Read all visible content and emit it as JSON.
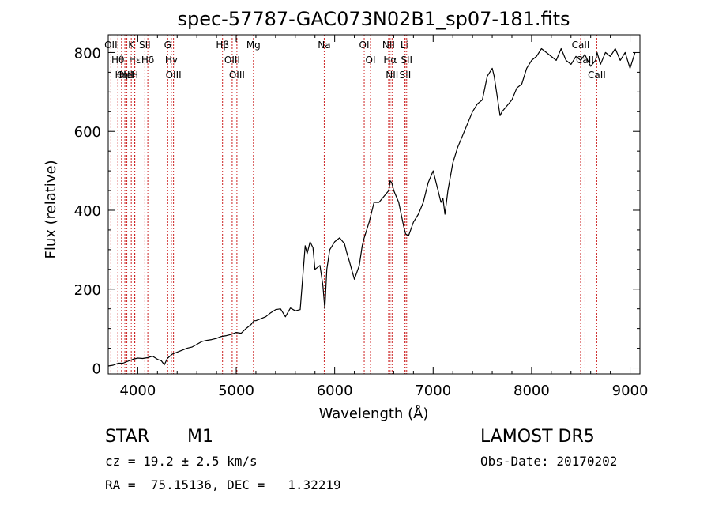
{
  "chart_data": {
    "type": "line",
    "title": "spec-57787-GAC073N02B1_sp07-181.fits",
    "xlabel": "Wavelength (Å)",
    "ylabel": "Flux (relative)",
    "xlim": [
      3700,
      9100
    ],
    "ylim": [
      -15,
      845
    ],
    "x_ticks": [
      4000,
      5000,
      6000,
      7000,
      8000,
      9000
    ],
    "y_ticks": [
      0,
      200,
      400,
      600,
      800
    ],
    "grid": false,
    "line_color": "#000000",
    "marker_color": "#cc2222",
    "series": [
      {
        "x": [
          3700,
          3750,
          3800,
          3850,
          3900,
          3950,
          4000,
          4050,
          4100,
          4150,
          4200,
          4240,
          4270,
          4300,
          4350,
          4400,
          4450,
          4500,
          4550,
          4600,
          4650,
          4700,
          4750,
          4800,
          4850,
          4900,
          4950,
          5000,
          5050,
          5100,
          5150,
          5180,
          5200,
          5250,
          5300,
          5350,
          5400,
          5450,
          5500,
          5550,
          5600,
          5650,
          5700,
          5720,
          5750,
          5780,
          5800,
          5850,
          5880,
          5900,
          5920,
          5950,
          6000,
          6050,
          6100,
          6120,
          6150,
          6200,
          6250,
          6280,
          6300,
          6350,
          6400,
          6450,
          6500,
          6550,
          6563,
          6580,
          6600,
          6650,
          6700,
          6720,
          6750,
          6800,
          6850,
          6900,
          6950,
          7000,
          7050,
          7080,
          7100,
          7120,
          7150,
          7200,
          7250,
          7300,
          7350,
          7400,
          7450,
          7500,
          7550,
          7600,
          7620,
          7650,
          7680,
          7700,
          7750,
          7800,
          7850,
          7900,
          7950,
          8000,
          8050,
          8100,
          8150,
          8200,
          8250,
          8300,
          8350,
          8400,
          8450,
          8500,
          8540,
          8600,
          8650,
          8665,
          8700,
          8750,
          8800,
          8850,
          8900,
          8950,
          9000,
          9050
        ],
        "values": [
          5,
          7,
          12,
          12,
          17,
          22,
          25,
          24,
          26,
          30,
          22,
          18,
          8,
          24,
          35,
          40,
          45,
          50,
          53,
          60,
          67,
          70,
          72,
          75,
          80,
          82,
          85,
          90,
          88,
          100,
          110,
          120,
          120,
          125,
          130,
          140,
          148,
          150,
          130,
          152,
          145,
          148,
          310,
          290,
          320,
          305,
          250,
          260,
          210,
          150,
          250,
          300,
          320,
          330,
          315,
          295,
          270,
          225,
          260,
          310,
          330,
          370,
          420,
          420,
          435,
          450,
          475,
          470,
          450,
          420,
          360,
          340,
          335,
          370,
          390,
          420,
          470,
          500,
          450,
          420,
          430,
          390,
          450,
          520,
          560,
          590,
          620,
          650,
          670,
          680,
          740,
          760,
          740,
          690,
          640,
          650,
          665,
          680,
          710,
          720,
          760,
          780,
          790,
          810,
          800,
          790,
          780,
          810,
          780,
          770,
          790,
          780,
          795,
          765,
          780,
          800,
          770,
          800,
          790,
          810,
          780,
          800,
          760,
          800
        ]
      }
    ],
    "line_markers": [
      {
        "wavelength": 3727,
        "label": "OII"
      },
      {
        "wavelength": 3798,
        "label": "Hθ"
      },
      {
        "wavelength": 3835,
        "label": "Hη"
      },
      {
        "wavelength": 3869,
        "label": "OIII"
      },
      {
        "wavelength": 3889,
        "label": "HeI"
      },
      {
        "wavelength": 3934,
        "label": "K"
      },
      {
        "wavelength": 3970,
        "label": "Hε"
      },
      {
        "wavelength": 3969,
        "label": "H"
      },
      {
        "wavelength": 4072,
        "label": "SII"
      },
      {
        "wavelength": 4102,
        "label": "Hδ"
      },
      {
        "wavelength": 4304,
        "label": "G"
      },
      {
        "wavelength": 4341,
        "label": "Hγ"
      },
      {
        "wavelength": 4363,
        "label": "OIII"
      },
      {
        "wavelength": 4861,
        "label": "Hβ"
      },
      {
        "wavelength": 4959,
        "label": "OIII"
      },
      {
        "wavelength": 5007,
        "label": "OIII"
      },
      {
        "wavelength": 5175,
        "label": "Mg"
      },
      {
        "wavelength": 5894,
        "label": "Na"
      },
      {
        "wavelength": 6300,
        "label": "OI"
      },
      {
        "wavelength": 6364,
        "label": "OI"
      },
      {
        "wavelength": 6548,
        "label": "NII"
      },
      {
        "wavelength": 6563,
        "label": "Hα"
      },
      {
        "wavelength": 6583,
        "label": "NII"
      },
      {
        "wavelength": 6708,
        "label": "Li"
      },
      {
        "wavelength": 6716,
        "label": "SII"
      },
      {
        "wavelength": 6731,
        "label": "SII"
      },
      {
        "wavelength": 8498,
        "label": "CaII"
      },
      {
        "wavelength": 8542,
        "label": "CaII"
      },
      {
        "wavelength": 8662,
        "label": "CaII"
      }
    ]
  },
  "info": {
    "classification": "STAR",
    "subclass": "M1",
    "survey": "LAMOST DR5",
    "redshift_line": "cz = 19.2 ± 2.5 km/s",
    "obs_date_line": "Obs-Date: 20170202",
    "coords_line": "RA =  75.15136, DEC =   1.32219"
  }
}
